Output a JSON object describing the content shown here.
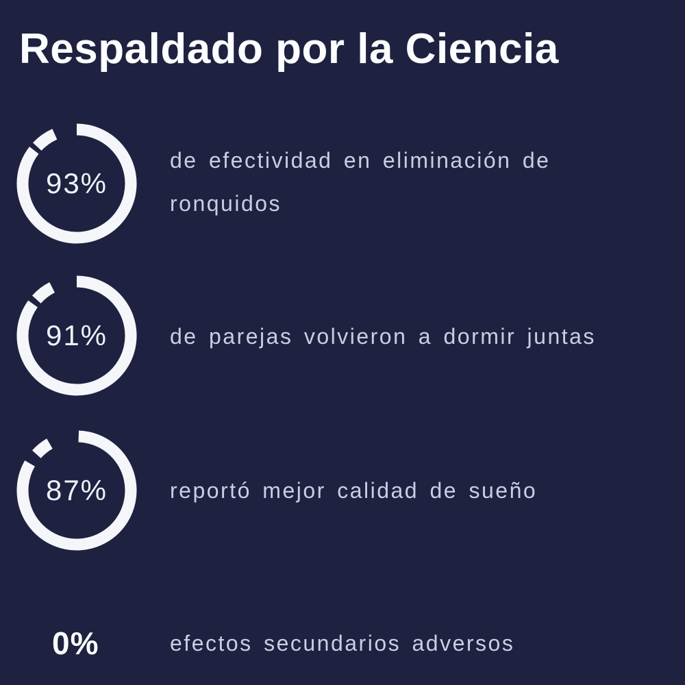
{
  "title": "Respaldado por la Ciencia",
  "colors": {
    "background": "#1e2240",
    "title_text": "#fcfdff",
    "body_text": "#c9cfe2",
    "ring": "#f4f6fa",
    "percent_text": "#eef1f8"
  },
  "chart_data": {
    "type": "pie",
    "subtype": "progress-rings",
    "title": "Respaldado por la Ciencia",
    "categories": [
      "de efectividad en eliminación de ronquidos",
      "de parejas volvieron a dormir juntas",
      "reportó mejor calidad de sueño",
      "efectos secundarios adversos"
    ],
    "values": [
      93,
      91,
      87,
      0
    ],
    "unit": "%",
    "legend_position": "none",
    "grid": false
  },
  "stats": [
    {
      "percent": "93%",
      "value": 93,
      "text": "de efectividad en eliminación de ronquidos",
      "ring": {
        "stroke_width": 17,
        "radius": 79,
        "segments": [
          [
            0,
            308
          ],
          [
            313,
            336
          ]
        ]
      }
    },
    {
      "percent": "91%",
      "value": 91,
      "text": "de parejas volvieron a dormir juntas",
      "ring": {
        "stroke_width": 17,
        "radius": 79,
        "segments": [
          [
            0,
            306
          ],
          [
            312,
            333
          ]
        ]
      }
    },
    {
      "percent": "87%",
      "value": 87,
      "text": "reportó mejor calidad de sueño",
      "ring": {
        "stroke_width": 17,
        "radius": 79,
        "segments": [
          [
            2,
            300
          ],
          [
            312,
            330
          ]
        ]
      }
    },
    {
      "percent": "0%",
      "value": 0,
      "text": "efectos secundarios adversos",
      "ring": null
    }
  ]
}
